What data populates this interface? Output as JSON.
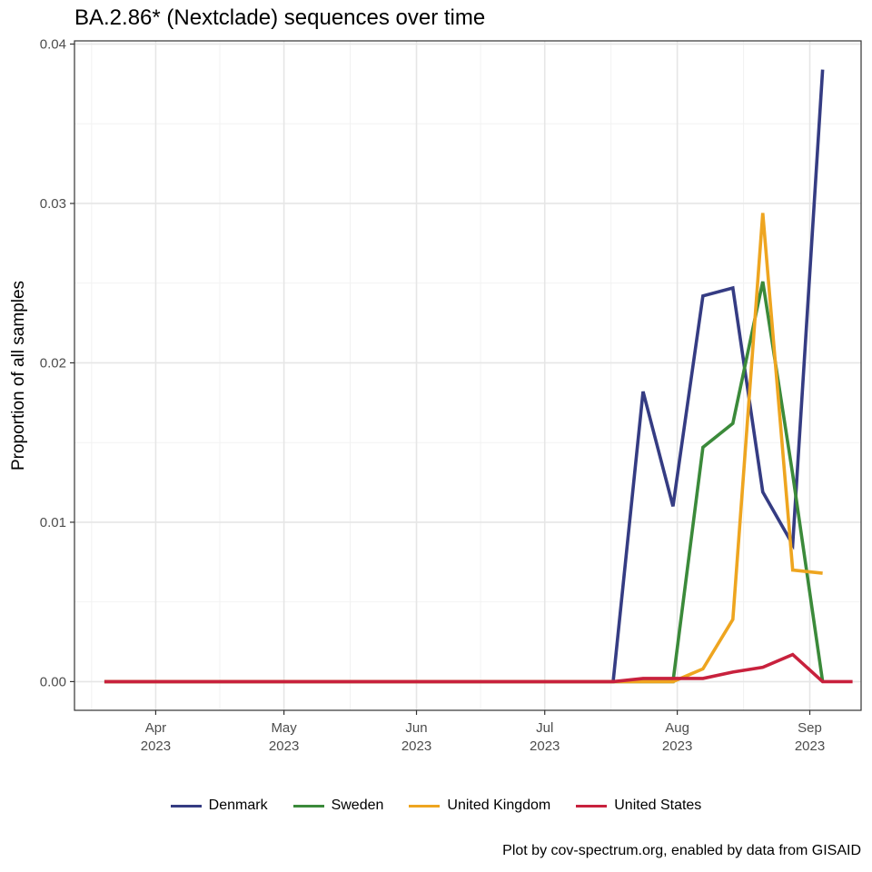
{
  "chart_data": {
    "type": "line",
    "title": "BA.2.86* (Nextclade) sequences over time",
    "xlabel": "",
    "ylabel": "Proportion of all samples",
    "caption": "Plot by cov-spectrum.org, enabled by data from GISAID",
    "x_axis": {
      "type": "date",
      "range": [
        "2023-03-13",
        "2023-09-13"
      ],
      "ticks": [
        {
          "date": "2023-04-01",
          "line1": "Apr",
          "line2": "2023"
        },
        {
          "date": "2023-05-01",
          "line1": "May",
          "line2": "2023"
        },
        {
          "date": "2023-06-01",
          "line1": "Jun",
          "line2": "2023"
        },
        {
          "date": "2023-07-01",
          "line1": "Jul",
          "line2": "2023"
        },
        {
          "date": "2023-08-01",
          "line1": "Aug",
          "line2": "2023"
        },
        {
          "date": "2023-09-01",
          "line1": "Sep",
          "line2": "2023"
        }
      ]
    },
    "y_axis": {
      "range": [
        -0.0018,
        0.0402
      ],
      "ticks": [
        0.0,
        0.01,
        0.02,
        0.03,
        0.04
      ],
      "tick_labels": [
        "0.00",
        "0.01",
        "0.02",
        "0.03",
        "0.04"
      ]
    },
    "grid": true,
    "legend_position": "bottom",
    "x": [
      "2023-03-20",
      "2023-03-27",
      "2023-04-03",
      "2023-04-10",
      "2023-04-17",
      "2023-04-24",
      "2023-05-01",
      "2023-05-08",
      "2023-05-15",
      "2023-05-22",
      "2023-05-29",
      "2023-06-05",
      "2023-06-12",
      "2023-06-19",
      "2023-06-26",
      "2023-07-03",
      "2023-07-10",
      "2023-07-17",
      "2023-07-24",
      "2023-07-31",
      "2023-08-07",
      "2023-08-14",
      "2023-08-21",
      "2023-08-28",
      "2023-09-04",
      "2023-09-11"
    ],
    "series": [
      {
        "name": "Denmark",
        "color": "#353c83",
        "values": [
          0,
          0,
          0,
          0,
          0,
          0,
          0,
          0,
          0,
          0,
          0,
          0,
          0,
          0,
          0,
          0,
          0,
          0,
          0.0182,
          0.011,
          0.0242,
          0.0247,
          0.0119,
          0.0086,
          0.0384,
          null
        ]
      },
      {
        "name": "Sweden",
        "color": "#3b8a3a",
        "values": [
          0,
          0,
          0,
          0,
          0,
          0,
          0,
          0,
          0,
          0,
          0,
          0,
          0,
          0,
          0,
          0,
          0,
          0,
          0,
          0,
          0.0147,
          0.0162,
          0.0251,
          0.013,
          0,
          null
        ]
      },
      {
        "name": "United Kingdom",
        "color": "#eea520",
        "values": [
          0,
          0,
          0,
          0,
          0,
          0,
          0,
          0,
          0,
          0,
          0,
          0,
          0,
          0,
          0,
          0,
          0,
          0,
          0,
          0,
          0.0008,
          0.0039,
          0.0294,
          0.007,
          0.0068,
          null
        ]
      },
      {
        "name": "United States",
        "color": "#c8213d",
        "values": [
          0,
          0,
          0,
          0,
          0,
          0,
          0,
          0,
          0,
          0,
          0,
          0,
          0,
          0,
          0,
          0,
          0,
          0,
          0.0002,
          0.0002,
          0.0002,
          0.0006,
          0.0009,
          0.0017,
          0,
          0
        ]
      }
    ]
  }
}
